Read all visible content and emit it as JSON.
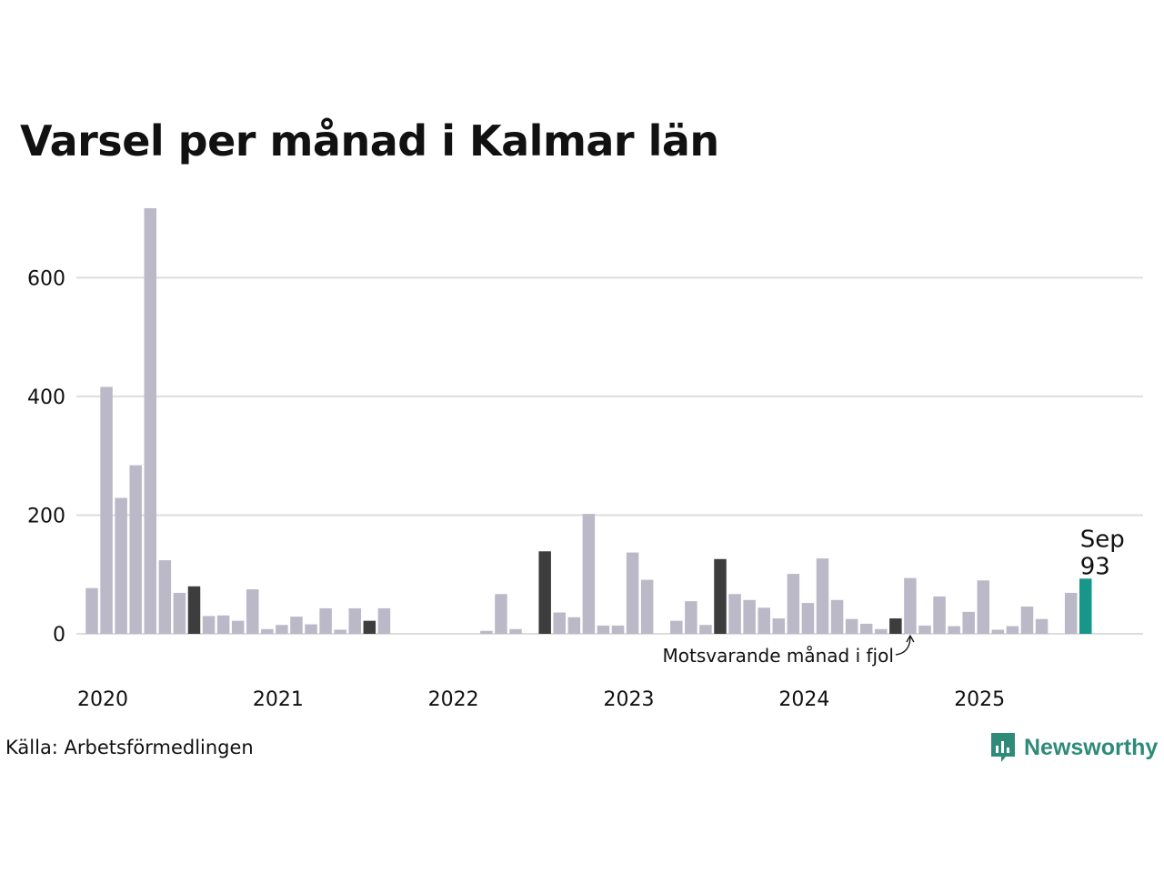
{
  "chart_data": {
    "type": "bar",
    "title": "Varsel per månad i Kalmar län",
    "source": "Källa: Arbetsförmedlingen",
    "brand": "Newsworthy",
    "xlabel": "",
    "ylabel": "",
    "ylim": [
      0,
      720
    ],
    "yticks": [
      0,
      200,
      400,
      600
    ],
    "ytick_labels": [
      "0",
      "200",
      "400",
      "600"
    ],
    "year_labels": [
      "2020",
      "2021",
      "2022",
      "2023",
      "2024",
      "2025"
    ],
    "start": "2020-01",
    "highlight_label": "Sep",
    "highlight_value_label": "93",
    "annotation": "Motsvarande månad i fjol",
    "colors": {
      "bar": "#bbb9c8",
      "same_month": "#3d3d3d",
      "current": "#17978a",
      "grid": "#dddddd",
      "text": "#111111",
      "brand": "#2e8b7a"
    },
    "months": [
      "2020-01",
      "2020-02",
      "2020-03",
      "2020-04",
      "2020-05",
      "2020-06",
      "2020-07",
      "2020-08",
      "2020-09",
      "2020-10",
      "2020-11",
      "2020-12",
      "2021-01",
      "2021-02",
      "2021-03",
      "2021-04",
      "2021-05",
      "2021-06",
      "2021-07",
      "2021-08",
      "2021-09",
      "2021-10",
      "2021-11",
      "2021-12",
      "2022-01",
      "2022-02",
      "2022-03",
      "2022-04",
      "2022-05",
      "2022-06",
      "2022-07",
      "2022-08",
      "2022-09",
      "2022-10",
      "2022-11",
      "2022-12",
      "2023-01",
      "2023-02",
      "2023-03",
      "2023-04",
      "2023-05",
      "2023-06",
      "2023-07",
      "2023-08",
      "2023-09",
      "2023-10",
      "2023-11",
      "2023-12",
      "2024-01",
      "2024-02",
      "2024-03",
      "2024-04",
      "2024-05",
      "2024-06",
      "2024-07",
      "2024-08",
      "2024-09",
      "2024-10",
      "2024-11",
      "2024-12",
      "2025-01",
      "2025-02",
      "2025-03",
      "2025-04",
      "2025-05",
      "2025-06",
      "2025-07",
      "2025-08",
      "2025-09"
    ],
    "values": [
      77,
      416,
      229,
      284,
      717,
      124,
      69,
      80,
      30,
      31,
      22,
      75,
      8,
      15,
      29,
      16,
      43,
      7,
      43,
      22,
      43,
      0,
      0,
      0,
      0,
      0,
      0,
      5,
      67,
      8,
      0,
      139,
      36,
      28,
      202,
      14,
      14,
      137,
      91,
      0,
      22,
      55,
      15,
      126,
      67,
      57,
      44,
      26,
      101,
      52,
      127,
      57,
      25,
      17,
      8,
      26,
      94,
      14,
      63,
      13,
      37,
      90,
      7,
      13,
      46,
      25,
      0,
      69,
      93
    ],
    "kinds": [
      "n",
      "n",
      "n",
      "n",
      "n",
      "n",
      "n",
      "p",
      "n",
      "n",
      "n",
      "n",
      "n",
      "n",
      "n",
      "n",
      "n",
      "n",
      "n",
      "p",
      "n",
      "n",
      "n",
      "n",
      "n",
      "n",
      "n",
      "n",
      "n",
      "n",
      "n",
      "p",
      "n",
      "n",
      "n",
      "n",
      "n",
      "n",
      "n",
      "n",
      "n",
      "n",
      "n",
      "p",
      "n",
      "n",
      "n",
      "n",
      "n",
      "n",
      "n",
      "n",
      "n",
      "n",
      "n",
      "p",
      "n",
      "n",
      "n",
      "n",
      "n",
      "n",
      "n",
      "n",
      "n",
      "n",
      "n",
      "n",
      "c"
    ]
  }
}
